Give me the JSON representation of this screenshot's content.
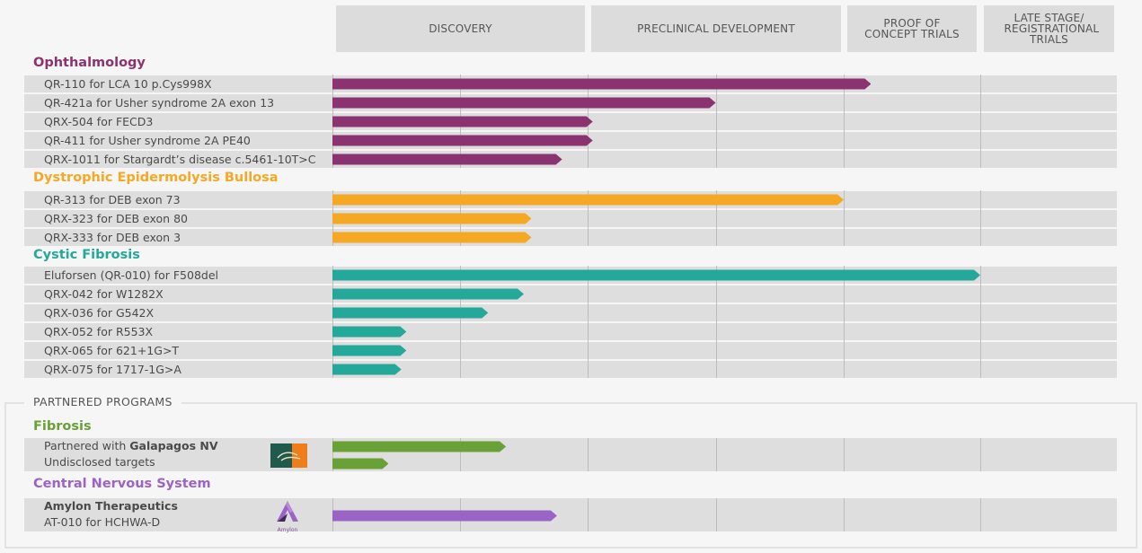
{
  "chart_data": {
    "type": "pipeline-bar",
    "phases": [
      "DISCOVERY",
      "PRECLINICAL DEVELOPMENT",
      "PROOF OF CONCEPT TRIALS",
      "LATE STAGE/ REGISTRATIONAL TRIALS"
    ],
    "progress_scale": "phase units: 0 = start of Discovery, 4 = end of Late Stage",
    "categories": [
      {
        "name": "Ophthalmology",
        "color": "#8b3370",
        "programs": [
          {
            "label": "QR-110 for LCA 10 p.Cys998X",
            "progress": 2.2
          },
          {
            "label": "QR-421a for Usher syndrome 2A exon 13",
            "progress": 1.5
          },
          {
            "label": "QRX-504 for FECD3",
            "progress": 1.02
          },
          {
            "label": "QR-411 for Usher syndrome 2A PE40",
            "progress": 1.02
          },
          {
            "label": "QRX-1011 for Stargardt’s disease c.5461-10T>C",
            "progress": 0.9
          }
        ]
      },
      {
        "name": "Dystrophic Epidermolysis Bullosa",
        "color": "#f5a823",
        "programs": [
          {
            "label": "QR-313 for DEB exon 73",
            "progress": 2.0
          },
          {
            "label": "QRX-323 for DEB exon 80",
            "progress": 0.78
          },
          {
            "label": "QRX-333 for DEB exon 3",
            "progress": 0.78
          }
        ]
      },
      {
        "name": "Cystic Fibrosis",
        "color": "#24a89a",
        "programs": [
          {
            "label": "Eluforsen (QR-010) for F508del",
            "progress": 3.0
          },
          {
            "label": "QRX-042 for W1282X",
            "progress": 0.75
          },
          {
            "label": "QRX-036 for G542X",
            "progress": 0.61
          },
          {
            "label": "QRX-052 for R553X",
            "progress": 0.29
          },
          {
            "label": "QRX-065 for 621+1G>T",
            "progress": 0.29
          },
          {
            "label": "QRX-075 for 1717-1G>A",
            "progress": 0.27
          }
        ]
      }
    ],
    "partnered": {
      "title": "PARTNERED PROGRAMS",
      "categories": [
        {
          "name": "Fibrosis",
          "color": "#6aa136",
          "logo": "galapagos-logo",
          "line1_prefix": "Partnered with ",
          "line1_bold": "Galapagos NV",
          "line2": "Undisclosed targets",
          "bars": [
            0.68,
            0.22
          ]
        },
        {
          "name": "Central Nervous System",
          "color": "#9a63c6",
          "logo": "amylon-logo",
          "logo_text": "Amylon",
          "line1_bold": "Amylon Therapeutics",
          "line2": "AT-010 for HCHWA-D",
          "bars": [
            0.88
          ]
        }
      ]
    }
  }
}
